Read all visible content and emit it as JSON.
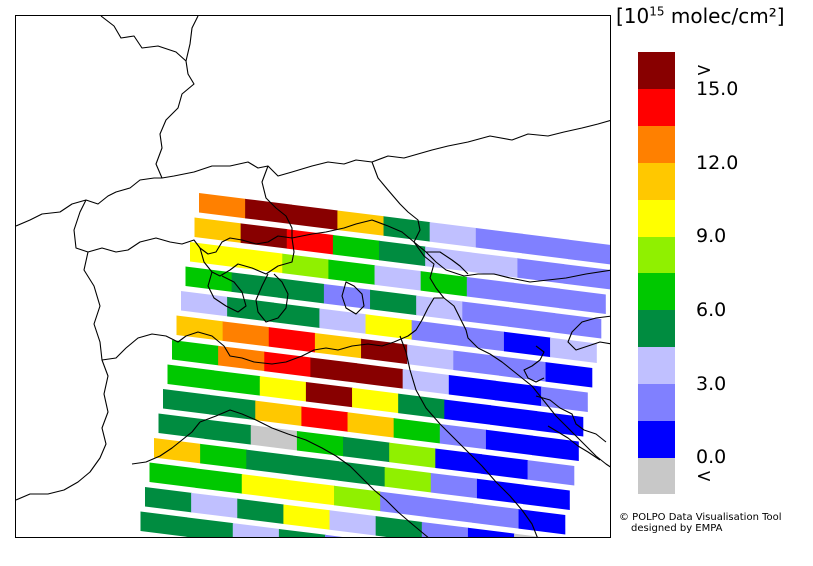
{
  "units": {
    "prefix": "[10",
    "exponent": "15",
    "suffix": " molec/cm²]"
  },
  "colorbar": {
    "colors": [
      "#c8c8c8",
      "#0000ff",
      "#8080ff",
      "#c0c0ff",
      "#008c40",
      "#00c800",
      "#90f000",
      "#ffff00",
      "#ffc800",
      "#ff8000",
      "#ff0000",
      "#880000"
    ],
    "labels": [
      "<",
      "0.0",
      "3.0",
      "6.0",
      "9.0",
      "12.0",
      "15.0",
      ">"
    ]
  },
  "credit": {
    "line1": "© POLPO Data Visualisation Tool",
    "line2": "designed by EMPA"
  },
  "swath": {
    "palette_names": [
      "below-range",
      "0-1.5",
      "1.5-3",
      "3-4.5",
      "4.5-6",
      "6-7.5",
      "7.5-9",
      "9-10.5",
      "10.5-12",
      "12-13.5",
      "13.5-15",
      "above-range"
    ],
    "rows": [
      [
        9,
        11,
        11,
        8,
        4,
        3,
        2,
        2,
        2
      ],
      [
        8,
        11,
        10,
        5,
        4,
        3,
        3,
        2,
        2
      ],
      [
        7,
        7,
        6,
        5,
        3,
        5,
        2,
        2,
        2
      ],
      [
        5,
        4,
        4,
        2,
        4,
        3,
        2,
        2,
        2
      ],
      [
        3,
        4,
        4,
        3,
        7,
        2,
        2,
        1,
        3
      ],
      [
        8,
        9,
        10,
        8,
        11,
        3,
        2,
        2,
        1
      ],
      [
        5,
        9,
        10,
        11,
        11,
        3,
        1,
        1,
        2
      ],
      [
        5,
        5,
        7,
        11,
        7,
        4,
        1,
        1,
        1
      ],
      [
        4,
        4,
        8,
        10,
        8,
        5,
        2,
        1,
        1
      ],
      [
        4,
        4,
        0,
        5,
        4,
        6,
        1,
        1,
        2
      ],
      [
        8,
        5,
        4,
        4,
        4,
        6,
        2,
        1,
        1
      ],
      [
        5,
        5,
        7,
        7,
        6,
        2,
        2,
        2,
        1
      ],
      [
        4,
        3,
        4,
        7,
        3,
        4,
        2,
        1,
        0
      ],
      [
        4,
        4,
        3,
        4,
        2,
        4,
        2,
        1,
        1
      ]
    ]
  }
}
